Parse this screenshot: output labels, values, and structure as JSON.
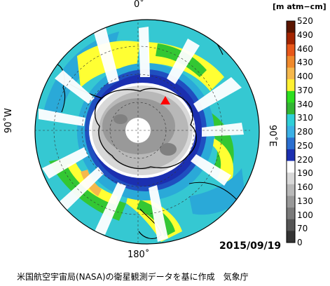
{
  "map": {
    "labels": {
      "top": "0˚",
      "bottom": "180˚",
      "left": "90˚W",
      "right": "90˚E"
    },
    "date": "2015/09/19",
    "credit": "米国航空宇宙局(NASA)の衛星観測データを基に作成　気象庁",
    "marker": {
      "shape": "triangle",
      "color": "#ff0000"
    },
    "colorbar": {
      "unit": "[m atm−cm]",
      "ticks": [
        "520",
        "490",
        "460",
        "430",
        "400",
        "370",
        "340",
        "310",
        "280",
        "250",
        "220",
        "190",
        "160",
        "130",
        "100",
        "70",
        "0"
      ],
      "colors": [
        "#5a1500",
        "#a32400",
        "#e8581a",
        "#f08a2c",
        "#f5b84c",
        "#fff133",
        "#2ddf1f",
        "#33b533",
        "#2fcfd8",
        "#3bb1e6",
        "#2a6fd0",
        "#1b2fb0",
        "#ffffff",
        "#d8d8d8",
        "#b8b8b8",
        "#999999",
        "#7a7a7a",
        "#555555",
        "#333333"
      ]
    }
  }
}
